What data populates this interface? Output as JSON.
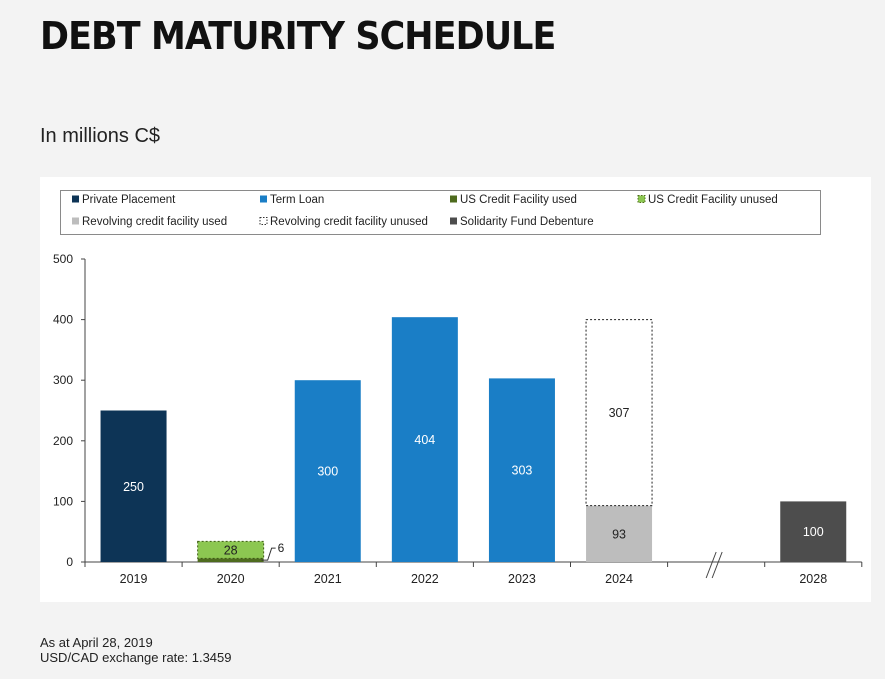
{
  "page": {
    "title": "DEBT MATURITY SCHEDULE",
    "subtitle": "In millions C$",
    "footnote_line1": "As at April 28, 2019",
    "footnote_line2": "USD/CAD exchange rate: 1.3459"
  },
  "colors": {
    "private_placement": "#0d3456",
    "term_loan": "#1a7ec6",
    "us_used": "#4e6b1e",
    "us_unused": "#8cc751",
    "revolving_used": "#bdbdbd",
    "revolving_unused": "#ffffff",
    "solidarity": "#4d4d4d"
  },
  "chart_data": {
    "type": "bar",
    "title": "DEBT MATURITY SCHEDULE",
    "ylabel": "In millions C$",
    "xlabel": "",
    "ylim": [
      0,
      500
    ],
    "yticks": [
      0,
      100,
      200,
      300,
      400,
      500
    ],
    "grid": false,
    "legend_position": "top",
    "categories": [
      "2019",
      "2020",
      "2021",
      "2022",
      "2023",
      "2024",
      "",
      "2028"
    ],
    "axis_break_after": "2024",
    "series": [
      {
        "key": "private_placement",
        "name": "Private Placement",
        "values": [
          250,
          0,
          0,
          0,
          0,
          0,
          0,
          0
        ],
        "style": "solid"
      },
      {
        "key": "term_loan",
        "name": "Term Loan",
        "values": [
          0,
          0,
          300,
          404,
          303,
          0,
          0,
          0
        ],
        "style": "solid"
      },
      {
        "key": "us_used",
        "name": "US Credit Facility used",
        "values": [
          0,
          6,
          0,
          0,
          0,
          0,
          0,
          0
        ],
        "style": "solid"
      },
      {
        "key": "us_unused",
        "name": "US Credit Facility unused",
        "values": [
          0,
          28,
          0,
          0,
          0,
          0,
          0,
          0
        ],
        "style": "dashed"
      },
      {
        "key": "revolving_used",
        "name": "Revolving credit facility used",
        "values": [
          0,
          0,
          0,
          0,
          0,
          93,
          0,
          0
        ],
        "style": "solid"
      },
      {
        "key": "revolving_unused",
        "name": "Revolving credit facility unused",
        "values": [
          0,
          0,
          0,
          0,
          0,
          307,
          0,
          0
        ],
        "style": "dashed"
      },
      {
        "key": "solidarity",
        "name": "Solidarity Fund Debenture",
        "values": [
          0,
          0,
          0,
          0,
          0,
          0,
          0,
          100
        ],
        "style": "solid"
      }
    ],
    "data_labels": [
      {
        "category": "2019",
        "text": "250"
      },
      {
        "category": "2020",
        "text": "28"
      },
      {
        "category": "2020",
        "text": "6",
        "callout": true
      },
      {
        "category": "2021",
        "text": "300"
      },
      {
        "category": "2022",
        "text": "404"
      },
      {
        "category": "2023",
        "text": "303"
      },
      {
        "category": "2024",
        "text": "93"
      },
      {
        "category": "2024",
        "text": "307"
      },
      {
        "category": "2028",
        "text": "100"
      }
    ]
  }
}
